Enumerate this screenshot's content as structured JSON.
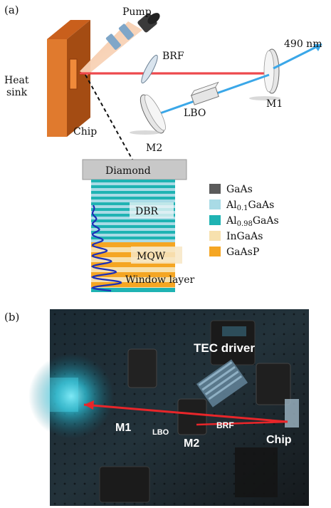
{
  "panel_a": {
    "label": "(a)",
    "labels": {
      "pump": "Pump",
      "brf": "BRF",
      "wavelength": "490 nm",
      "heat_sink_line1": "Heat",
      "heat_sink_line2": "sink",
      "lbo": "LBO",
      "m1": "M1",
      "m2": "M2",
      "chip": "Chip",
      "diamond": "Diamond",
      "dbr": "DBR",
      "mqw": "MQW",
      "window_layer": "Window layer"
    },
    "legend": [
      {
        "label": "GaAs",
        "color": "#5b5b5b"
      },
      {
        "label": "Al0.1GaAs",
        "color": "#a9dbe6"
      },
      {
        "label": "Al0.98GaAs",
        "color": "#1fb3b3"
      },
      {
        "label": "InGaAs",
        "color": "#f7e1ae"
      },
      {
        "label": "GaAsP",
        "color": "#f5a623"
      }
    ]
  },
  "panel_b": {
    "label": "(b)",
    "labels": {
      "tec_driver": "TEC driver",
      "m1": "M1",
      "lbo": "LBO",
      "m2": "M2",
      "brf": "BRF",
      "chip": "Chip"
    }
  },
  "colors": {
    "beam_red": "#e8262a",
    "beam_blue": "#3aa7e8",
    "heatsink": "#e07a2e",
    "diamond": "#c8c8c8"
  }
}
